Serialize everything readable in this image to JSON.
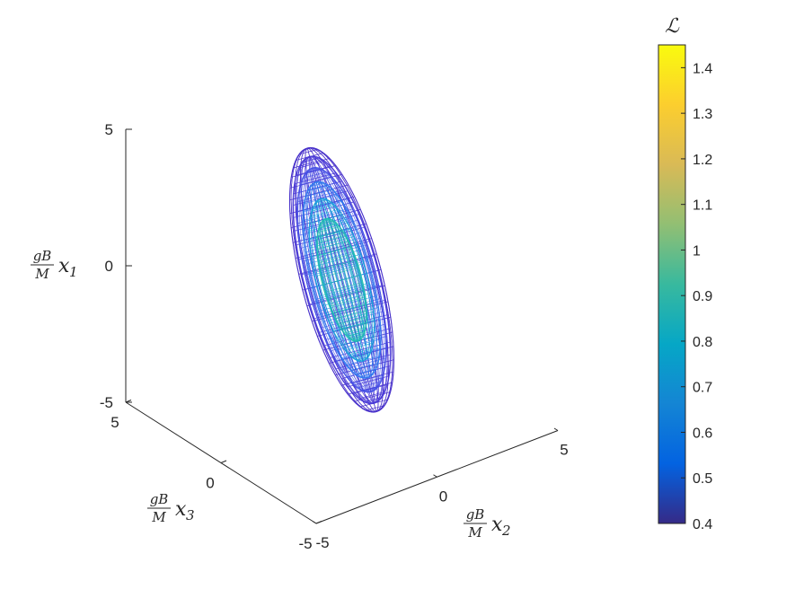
{
  "chart_data": {
    "type": "3d-mesh",
    "axes": {
      "x1": {
        "label": {
          "fraction_num": "gB",
          "fraction_den": "M",
          "var": "x",
          "sub": "1"
        },
        "range": [
          -5,
          5
        ],
        "ticks": [
          {
            "v": -5,
            "t": "-5"
          },
          {
            "v": 0,
            "t": "0"
          },
          {
            "v": 5,
            "t": "5"
          }
        ]
      },
      "x2": {
        "label": {
          "fraction_num": "gB",
          "fraction_den": "M",
          "var": "x",
          "sub": "2"
        },
        "range": [
          -5,
          5
        ],
        "ticks": [
          {
            "v": -5,
            "t": "-5"
          },
          {
            "v": 0,
            "t": "0"
          },
          {
            "v": 5,
            "t": "5"
          }
        ]
      },
      "x3": {
        "label": {
          "fraction_num": "gB",
          "fraction_den": "M",
          "var": "x",
          "sub": "3"
        },
        "range": [
          -5,
          5
        ],
        "ticks": [
          {
            "v": -5,
            "t": "-5"
          },
          {
            "v": 0,
            "t": "0"
          },
          {
            "v": 5,
            "t": "5"
          }
        ]
      }
    },
    "isosurfaces": [
      {
        "level": 0.42,
        "color": "#4028c8"
      },
      {
        "level": 0.48,
        "color": "#4636d6"
      },
      {
        "level": 0.56,
        "color": "#4350e6"
      },
      {
        "level": 0.66,
        "color": "#2d79ee"
      },
      {
        "level": 0.78,
        "color": "#18a3d8"
      },
      {
        "level": 0.92,
        "color": "#20bdb2"
      }
    ],
    "colorbar": {
      "title": "ℒ",
      "limits": [
        0.4,
        1.45
      ],
      "ticks": [
        {
          "v": 0.4,
          "t": "0.4"
        },
        {
          "v": 0.5,
          "t": "0.5"
        },
        {
          "v": 0.6,
          "t": "0.6"
        },
        {
          "v": 0.7,
          "t": "0.7"
        },
        {
          "v": 0.8,
          "t": "0.8"
        },
        {
          "v": 0.9,
          "t": "0.9"
        },
        {
          "v": 1.0,
          "t": "1"
        },
        {
          "v": 1.1,
          "t": "1.1"
        },
        {
          "v": 1.2,
          "t": "1.2"
        },
        {
          "v": 1.3,
          "t": "1.3"
        },
        {
          "v": 1.4,
          "t": "1.4"
        }
      ],
      "colormap": [
        "#352a87",
        "#0363e1",
        "#1485d4",
        "#06a7c6",
        "#38b99e",
        "#92bf73",
        "#d9ba56",
        "#fcce2e",
        "#f9fb0e"
      ]
    }
  }
}
